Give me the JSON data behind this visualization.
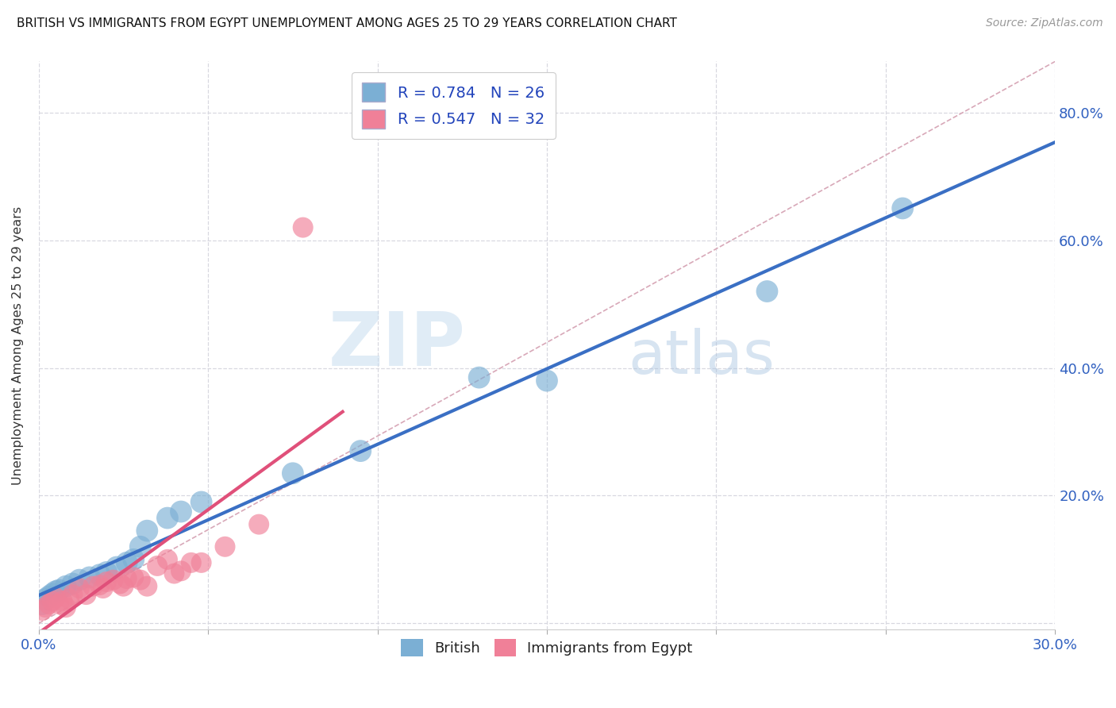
{
  "title": "BRITISH VS IMMIGRANTS FROM EGYPT UNEMPLOYMENT AMONG AGES 25 TO 29 YEARS CORRELATION CHART",
  "source": "Source: ZipAtlas.com",
  "ylabel": "Unemployment Among Ages 25 to 29 years",
  "xlim": [
    0.0,
    0.3
  ],
  "ylim": [
    -0.01,
    0.88
  ],
  "xticks": [
    0.0,
    0.05,
    0.1,
    0.15,
    0.2,
    0.25,
    0.3
  ],
  "yticks": [
    0.0,
    0.2,
    0.4,
    0.6,
    0.8
  ],
  "ytick_labels_right": [
    "",
    "20.0%",
    "40.0%",
    "60.0%",
    "80.0%"
  ],
  "xtick_labels": [
    "0.0%",
    "",
    "",
    "",
    "",
    "",
    "30.0%"
  ],
  "legend_entries": [
    {
      "label": "R = 0.784   N = 26",
      "color": "#a8c4e0"
    },
    {
      "label": "R = 0.547   N = 32",
      "color": "#f4b8c8"
    }
  ],
  "british_x": [
    0.001,
    0.002,
    0.003,
    0.004,
    0.005,
    0.006,
    0.008,
    0.01,
    0.012,
    0.015,
    0.018,
    0.02,
    0.023,
    0.026,
    0.028,
    0.03,
    0.032,
    0.038,
    0.042,
    0.048,
    0.075,
    0.095,
    0.13,
    0.15,
    0.215,
    0.255
  ],
  "british_y": [
    0.03,
    0.038,
    0.042,
    0.046,
    0.05,
    0.052,
    0.058,
    0.062,
    0.068,
    0.072,
    0.076,
    0.08,
    0.088,
    0.095,
    0.1,
    0.12,
    0.145,
    0.165,
    0.175,
    0.19,
    0.235,
    0.27,
    0.385,
    0.38,
    0.52,
    0.65
  ],
  "egypt_x": [
    0.001,
    0.002,
    0.003,
    0.004,
    0.005,
    0.006,
    0.007,
    0.008,
    0.009,
    0.01,
    0.012,
    0.014,
    0.016,
    0.018,
    0.019,
    0.02,
    0.022,
    0.024,
    0.025,
    0.026,
    0.028,
    0.03,
    0.032,
    0.035,
    0.038,
    0.04,
    0.042,
    0.045,
    0.048,
    0.055,
    0.065,
    0.078
  ],
  "egypt_y": [
    0.02,
    0.025,
    0.03,
    0.035,
    0.04,
    0.03,
    0.035,
    0.025,
    0.038,
    0.045,
    0.055,
    0.045,
    0.058,
    0.06,
    0.055,
    0.065,
    0.068,
    0.062,
    0.058,
    0.07,
    0.072,
    0.068,
    0.058,
    0.09,
    0.1,
    0.078,
    0.082,
    0.095,
    0.095,
    0.12,
    0.155,
    0.62
  ],
  "blue_color": "#7bafd4",
  "pink_color": "#f08098",
  "blue_line_color": "#3a6fc4",
  "pink_line_color": "#e0507a",
  "diag_color": "#d8a8b8",
  "watermark_zip": "ZIP",
  "watermark_atlas": "atlas",
  "background_color": "#ffffff",
  "grid_color": "#d8d8e0"
}
